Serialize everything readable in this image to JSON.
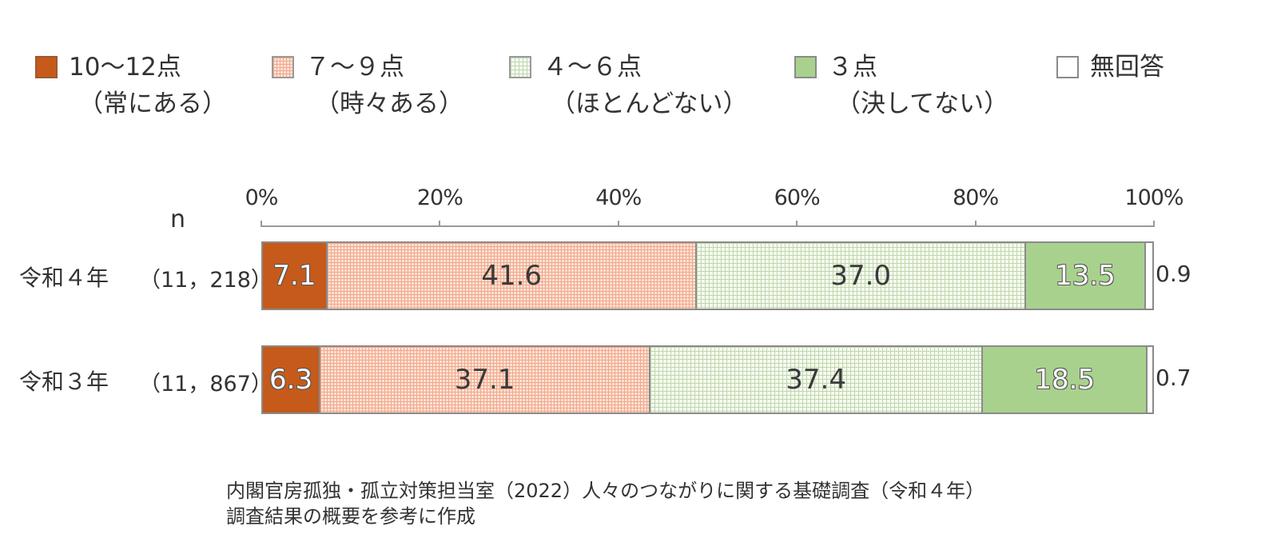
{
  "legend": [
    {
      "label": "10～12点",
      "sub": "（常にある）",
      "color": "#c55a1b",
      "pattern": "solid"
    },
    {
      "label": "７～９点",
      "sub": "（時々ある）",
      "color": "#fbe1d4",
      "pattern": "dotted"
    },
    {
      "label": "４～６点",
      "sub": "（ほとんどない）",
      "color": "#f6faf1",
      "pattern": "grid"
    },
    {
      "label": "３点",
      "sub": "（決してない）",
      "color": "#a9d18e",
      "pattern": "solid"
    },
    {
      "label": "無回答",
      "sub": "",
      "color": "#ffffff",
      "pattern": "solid"
    }
  ],
  "chart_data": {
    "type": "bar",
    "orientation": "horizontal-stacked-100",
    "n_header": "n",
    "ticks": [
      "0%",
      "20%",
      "40%",
      "60%",
      "80%",
      "100%"
    ],
    "xlim": [
      0,
      100
    ],
    "categories": [
      "令和４年",
      "令和３年"
    ],
    "sample_sizes": [
      "（11，218）",
      "（11，867）"
    ],
    "series": [
      {
        "name": "10～12点（常にある）",
        "values": [
          7.1,
          6.3
        ]
      },
      {
        "name": "７～９点（時々ある）",
        "values": [
          41.6,
          37.1
        ]
      },
      {
        "name": "４～６点（ほとんどない）",
        "values": [
          37.0,
          37.4
        ]
      },
      {
        "name": "３点（決してない）",
        "values": [
          13.5,
          18.5
        ]
      },
      {
        "name": "無回答",
        "values": [
          0.9,
          0.7
        ]
      }
    ],
    "value_labels": [
      [
        "7.1",
        "41.6",
        "37.0",
        "13.5",
        "0.9"
      ],
      [
        "6.3",
        "37.1",
        "37.4",
        "18.5",
        "0.7"
      ]
    ]
  },
  "source": {
    "line1": "内閣官房孤独・孤立対策担当室（2022）人々のつながりに関する基礎調査（令和４年）",
    "line2": "調査結果の概要を参考に作成"
  }
}
